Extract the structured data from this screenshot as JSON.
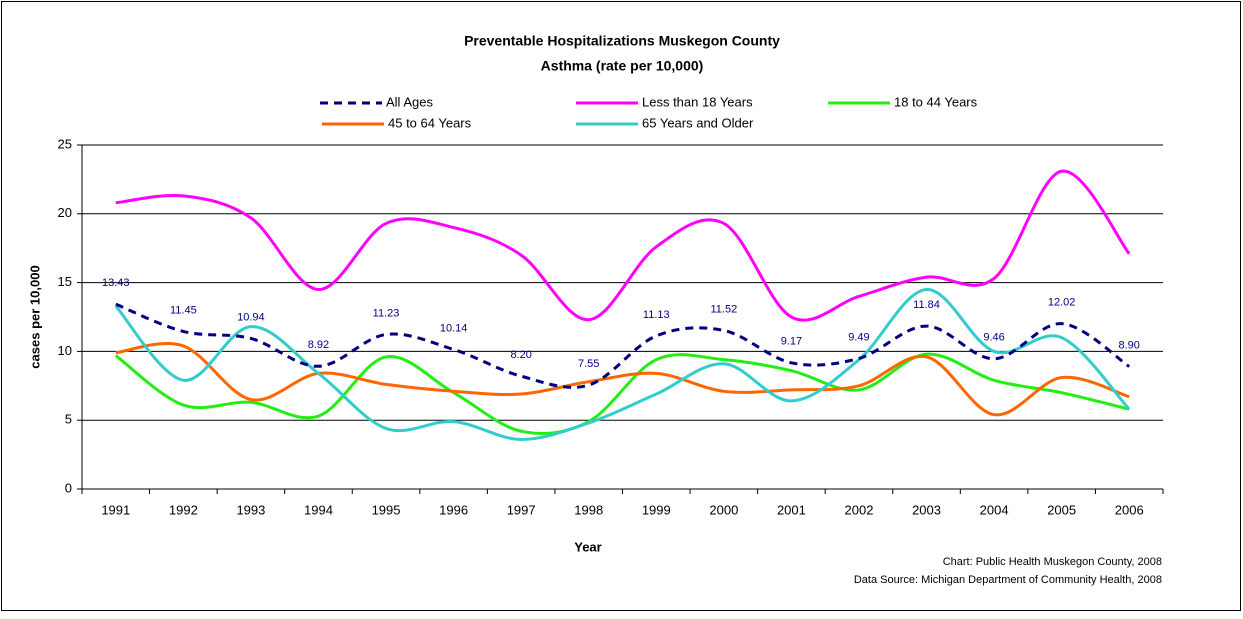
{
  "chart_data": {
    "type": "line",
    "title": "Preventable Hospitalizations Muskegon County",
    "subtitle": "Asthma (rate per 10,000)",
    "x_label": "Year",
    "y_label": "cases per 10,000",
    "annotations": [
      "Chart: Public Health Muskegon County, 2008",
      "Data Source: Michigan Department of Community Health, 2008"
    ],
    "categories": [
      "1991",
      "1992",
      "1993",
      "1994",
      "1995",
      "1996",
      "1997",
      "1998",
      "1999",
      "2000",
      "2001",
      "2002",
      "2003",
      "2004",
      "2005",
      "2006"
    ],
    "ylim": [
      0,
      25
    ],
    "yticks": [
      0,
      5,
      10,
      15,
      20,
      25
    ],
    "grid": true,
    "legend": "top",
    "series": [
      {
        "name": "All Ages",
        "color": "#000080",
        "dashed": true,
        "values": [
          13.43,
          11.45,
          10.94,
          8.92,
          11.23,
          10.14,
          8.2,
          7.55,
          11.13,
          11.52,
          9.17,
          9.49,
          11.84,
          9.46,
          12.02,
          8.9
        ],
        "value_labels": [
          "13.43",
          "11.45",
          "10.94",
          "8.92",
          "11.23",
          "10.14",
          "8.20",
          "7.55",
          "11.13",
          "11.52",
          "9.17",
          "9.49",
          "11.84",
          "9.46",
          "12.02",
          "8.90"
        ]
      },
      {
        "name": "Less than 18 Years",
        "color": "#ff00ff",
        "values": [
          20.8,
          21.3,
          19.7,
          14.5,
          19.3,
          19.0,
          17.0,
          12.3,
          17.6,
          19.3,
          12.5,
          14.0,
          15.4,
          15.3,
          23.1,
          17.1
        ]
      },
      {
        "name": "18 to 44 Years",
        "color": "#22ee11",
        "values": [
          9.7,
          6.1,
          6.3,
          5.3,
          9.6,
          7.0,
          4.2,
          4.9,
          9.4,
          9.4,
          8.6,
          7.2,
          9.8,
          7.9,
          7.0,
          5.8
        ]
      },
      {
        "name": "45 to 64 Years",
        "color": "#ff6600",
        "values": [
          9.9,
          10.4,
          6.5,
          8.4,
          7.6,
          7.1,
          6.9,
          7.8,
          8.4,
          7.1,
          7.2,
          7.5,
          9.6,
          5.4,
          8.1,
          6.7
        ]
      },
      {
        "name": "65 Years and Older",
        "color": "#33cccc",
        "values": [
          13.3,
          7.9,
          11.8,
          8.4,
          4.4,
          4.9,
          3.6,
          4.8,
          6.9,
          9.1,
          6.4,
          9.4,
          14.5,
          10.0,
          11.0,
          5.8
        ]
      }
    ]
  }
}
